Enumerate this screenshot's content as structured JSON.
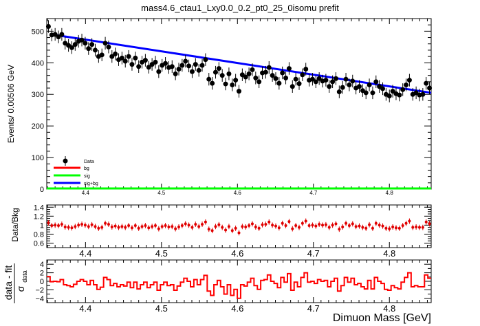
{
  "title": "mass4.6_ctau1_Lxy0.0_0.2_pt0_25_0isomu   prefit",
  "colors": {
    "data": "#000000",
    "bg": "#ff0000",
    "sig": "#00ff00",
    "sigbg": "#0000ff",
    "ratio": "#e00000",
    "resid": "#ff0000"
  },
  "chart_data": [
    {
      "type": "scatter",
      "name": "main",
      "title": "mass4.6_ctau1_Lxy0.0_0.2_pt0_25_0isomu   prefit",
      "xlabel": "",
      "ylabel": "Events/ 0.00506 GeV",
      "xlim": [
        4.349,
        4.855
      ],
      "ylim": [
        0,
        540
      ],
      "xticks": [
        "4.4",
        "4.5",
        "4.6",
        "4.7",
        "4.8"
      ],
      "yticks": [
        "0",
        "100",
        "200",
        "300",
        "400",
        "500"
      ],
      "legend": [
        "Data",
        "bg",
        "sig",
        "sig+bg"
      ],
      "legend_position": "bottom-left",
      "data_y": [
        515,
        488,
        490,
        482,
        490,
        462,
        455,
        448,
        458,
        468,
        472,
        462,
        445,
        458,
        440,
        420,
        425,
        462,
        450,
        420,
        428,
        410,
        415,
        405,
        420,
        395,
        415,
        388,
        402,
        408,
        386,
        395,
        402,
        372,
        392,
        398,
        385,
        388,
        365,
        380,
        392,
        405,
        390,
        372,
        395,
        376,
        392,
        410,
        348,
        335,
        370,
        382,
        360,
        333,
        365,
        330,
        345,
        310,
        362,
        355,
        365,
        378,
        352,
        340,
        368,
        370,
        385,
        360,
        350,
        335,
        368,
        352,
        382,
        325,
        348,
        334,
        362,
        380,
        345,
        348,
        340,
        350,
        342,
        345,
        325,
        340,
        350,
        308,
        322,
        348,
        330,
        342,
        320,
        325,
        312,
        305,
        330,
        305,
        340,
        325,
        318,
        300,
        295,
        310,
        302,
        298,
        315,
        330,
        345,
        300,
        305,
        298,
        300,
        335,
        320
      ],
      "data_err": 20,
      "bg_y_start": 0,
      "sig_y": 0,
      "sigbg_y_start": 490,
      "sigbg_y_end": 305
    },
    {
      "type": "scatter",
      "name": "ratio",
      "ylabel": "Data/Bkg",
      "xlim": [
        4.349,
        4.855
      ],
      "ylim": [
        0.5,
        1.45
      ],
      "xticks": [
        "4.4",
        "4.5",
        "4.6",
        "4.7",
        "4.8"
      ],
      "yticks": [
        "0.6",
        "0.8",
        "1",
        "1.2",
        "1.4"
      ],
      "values": [
        1.05,
        0.99,
        1.0,
        0.99,
        1.02,
        0.96,
        0.95,
        0.94,
        0.97,
        1.0,
        1.02,
        1.0,
        0.97,
        1.01,
        0.97,
        0.93,
        0.95,
        1.04,
        1.02,
        0.96,
        0.98,
        0.95,
        0.97,
        0.95,
        0.99,
        0.94,
        0.99,
        0.93,
        0.97,
        0.99,
        0.94,
        0.97,
        0.99,
        0.92,
        0.97,
        0.99,
        0.96,
        0.97,
        0.92,
        0.96,
        0.99,
        1.03,
        1.0,
        0.95,
        1.02,
        0.97,
        1.02,
        1.07,
        0.91,
        0.88,
        0.97,
        1.01,
        0.95,
        0.89,
        0.97,
        0.88,
        0.93,
        0.83,
        0.97,
        0.96,
        0.99,
        1.03,
        0.96,
        0.93,
        1.01,
        1.02,
        1.07,
        1.0,
        0.98,
        0.94,
        1.04,
        0.99,
        1.08,
        0.92,
        0.99,
        0.95,
        1.04,
        1.09,
        0.99,
        1.0,
        0.98,
        1.02,
        1.0,
        1.01,
        0.95,
        1.0,
        1.03,
        0.91,
        0.96,
        1.04,
        0.99,
        1.03,
        0.97,
        0.98,
        0.95,
        0.93,
        1.01,
        0.93,
        1.04,
        1.0,
        0.98,
        0.93,
        0.92,
        0.96,
        0.94,
        0.93,
        0.99,
        1.04,
        1.09,
        0.95,
        0.96,
        0.95,
        0.95,
        1.07,
        1.03
      ],
      "err": 0.06
    },
    {
      "type": "bar",
      "name": "residual",
      "ylabel_num": "data - fit",
      "ylabel_den": "σ",
      "ylabel_sub": "data",
      "xlabel": "Dimuon Mass [GeV]",
      "xlim": [
        4.349,
        4.855
      ],
      "ylim": [
        -5,
        5
      ],
      "xticks": [
        "4.4",
        "4.5",
        "4.6",
        "4.7",
        "4.8"
      ],
      "yticks": [
        "−4",
        "−2",
        "0",
        "2",
        "4"
      ],
      "values": [
        1.1,
        -0.1,
        0.0,
        -0.1,
        0.4,
        -0.8,
        -1.0,
        -1.3,
        -0.7,
        0.0,
        0.4,
        0.0,
        -0.8,
        0.2,
        -0.8,
        -1.9,
        -1.4,
        0.9,
        0.4,
        -1.0,
        -0.5,
        -1.3,
        -0.8,
        -1.1,
        -0.2,
        -1.5,
        -0.2,
        -1.8,
        -0.8,
        -0.2,
        -1.5,
        -0.8,
        -0.2,
        -2.1,
        -0.8,
        -0.2,
        -1.0,
        -0.8,
        -2.1,
        -1.1,
        -0.2,
        0.7,
        0.0,
        -1.3,
        0.4,
        -0.8,
        0.4,
        1.4,
        -2.3,
        -3.3,
        -0.8,
        0.2,
        -1.3,
        -3.0,
        -0.8,
        -3.3,
        -1.9,
        -4.0,
        -0.8,
        -1.1,
        -0.2,
        0.7,
        -1.0,
        -1.9,
        0.2,
        0.4,
        1.5,
        0.0,
        -0.5,
        -1.5,
        0.9,
        -0.2,
        1.8,
        -2.1,
        -0.2,
        -1.3,
        0.9,
        2.0,
        -0.2,
        0.0,
        -0.5,
        0.4,
        0.0,
        0.2,
        -1.3,
        0.0,
        0.7,
        -2.3,
        -1.0,
        0.9,
        -0.2,
        0.7,
        -0.8,
        -0.5,
        -1.3,
        -1.8,
        0.2,
        -1.8,
        0.9,
        0.0,
        -0.5,
        -1.9,
        -2.1,
        -1.0,
        -1.5,
        -1.8,
        -0.2,
        0.9,
        2.0,
        -1.3,
        -1.0,
        -1.3,
        -1.3,
        1.5,
        0.7
      ]
    }
  ]
}
